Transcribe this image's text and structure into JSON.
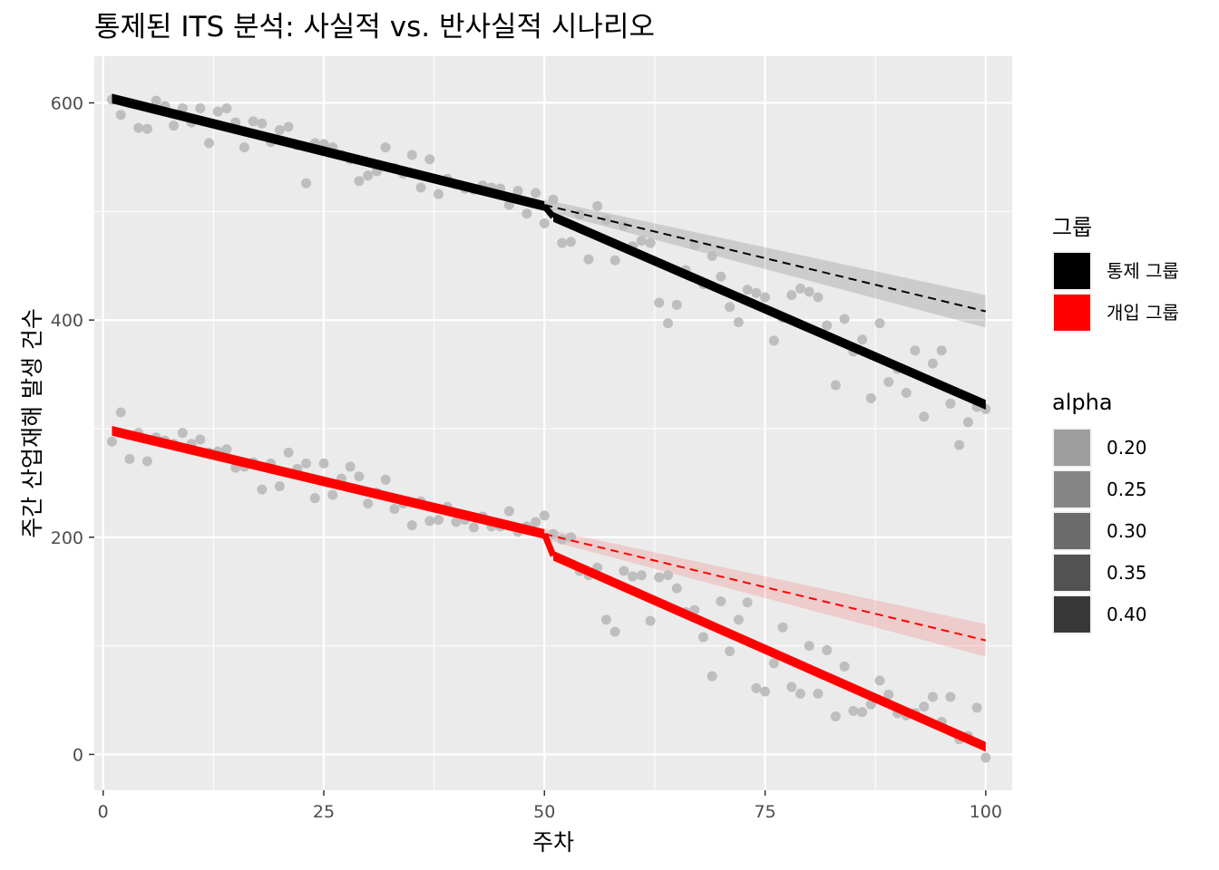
{
  "chart_data": {
    "type": "scatter",
    "title": "통제된 ITS 분석: 사실적 vs. 반사실적 시나리오",
    "xlabel": "주차",
    "ylabel": "주간 산업재해 발생 건수",
    "xlim": [
      -1,
      103
    ],
    "ylim": [
      -33,
      643
    ],
    "x_ticks": [
      0,
      25,
      50,
      75,
      100
    ],
    "x_tick_labels": [
      "0",
      "25",
      "50",
      "75",
      "100"
    ],
    "y_ticks": [
      0,
      200,
      400,
      600
    ],
    "y_tick_labels": [
      "0",
      "200",
      "400",
      "600"
    ],
    "grid": true,
    "background": "#ebebeb",
    "interruption_week": 50,
    "point_color": "#bebebe",
    "series": [
      {
        "name": "통제 그룹",
        "color": "#000000",
        "fitted_pre": {
          "x": [
            1,
            50
          ],
          "y": [
            604,
            505
          ]
        },
        "fitted_post": {
          "x": [
            51,
            100
          ],
          "y": [
            495,
            322
          ]
        },
        "counterfactual": {
          "x": [
            50,
            100
          ],
          "y": [
            506,
            408
          ],
          "band_low": [
            501,
            393
          ],
          "band_high": [
            511,
            423
          ]
        },
        "points": [
          {
            "x": 1,
            "y": 603
          },
          {
            "x": 2,
            "y": 589
          },
          {
            "x": 3,
            "y": 600
          },
          {
            "x": 4,
            "y": 577
          },
          {
            "x": 5,
            "y": 576
          },
          {
            "x": 6,
            "y": 602
          },
          {
            "x": 7,
            "y": 597
          },
          {
            "x": 8,
            "y": 579
          },
          {
            "x": 9,
            "y": 595
          },
          {
            "x": 10,
            "y": 582
          },
          {
            "x": 11,
            "y": 595
          },
          {
            "x": 12,
            "y": 563
          },
          {
            "x": 13,
            "y": 592
          },
          {
            "x": 14,
            "y": 595
          },
          {
            "x": 15,
            "y": 582
          },
          {
            "x": 16,
            "y": 559
          },
          {
            "x": 17,
            "y": 583
          },
          {
            "x": 18,
            "y": 581
          },
          {
            "x": 19,
            "y": 564
          },
          {
            "x": 20,
            "y": 575
          },
          {
            "x": 21,
            "y": 578
          },
          {
            "x": 22,
            "y": 561
          },
          {
            "x": 23,
            "y": 526
          },
          {
            "x": 24,
            "y": 563
          },
          {
            "x": 25,
            "y": 562
          },
          {
            "x": 26,
            "y": 559
          },
          {
            "x": 27,
            "y": 552
          },
          {
            "x": 28,
            "y": 548
          },
          {
            "x": 29,
            "y": 528
          },
          {
            "x": 30,
            "y": 533
          },
          {
            "x": 31,
            "y": 537
          },
          {
            "x": 32,
            "y": 559
          },
          {
            "x": 33,
            "y": 540
          },
          {
            "x": 34,
            "y": 535
          },
          {
            "x": 35,
            "y": 552
          },
          {
            "x": 36,
            "y": 522
          },
          {
            "x": 37,
            "y": 548
          },
          {
            "x": 38,
            "y": 516
          },
          {
            "x": 39,
            "y": 530
          },
          {
            "x": 40,
            "y": 525
          },
          {
            "x": 41,
            "y": 521
          },
          {
            "x": 42,
            "y": 520
          },
          {
            "x": 43,
            "y": 524
          },
          {
            "x": 44,
            "y": 522
          },
          {
            "x": 45,
            "y": 521
          },
          {
            "x": 46,
            "y": 506
          },
          {
            "x": 47,
            "y": 519
          },
          {
            "x": 48,
            "y": 498
          },
          {
            "x": 49,
            "y": 517
          },
          {
            "x": 50,
            "y": 489
          },
          {
            "x": 51,
            "y": 511
          },
          {
            "x": 52,
            "y": 471
          },
          {
            "x": 53,
            "y": 472
          },
          {
            "x": 54,
            "y": 497
          },
          {
            "x": 55,
            "y": 456
          },
          {
            "x": 56,
            "y": 505
          },
          {
            "x": 57,
            "y": 492
          },
          {
            "x": 58,
            "y": 455
          },
          {
            "x": 59,
            "y": 487
          },
          {
            "x": 60,
            "y": 468
          },
          {
            "x": 61,
            "y": 473
          },
          {
            "x": 62,
            "y": 471
          },
          {
            "x": 63,
            "y": 416
          },
          {
            "x": 64,
            "y": 397
          },
          {
            "x": 65,
            "y": 414
          },
          {
            "x": 66,
            "y": 446
          },
          {
            "x": 67,
            "y": 469
          },
          {
            "x": 68,
            "y": 433
          },
          {
            "x": 69,
            "y": 459
          },
          {
            "x": 70,
            "y": 440
          },
          {
            "x": 71,
            "y": 412
          },
          {
            "x": 72,
            "y": 398
          },
          {
            "x": 73,
            "y": 428
          },
          {
            "x": 74,
            "y": 425
          },
          {
            "x": 75,
            "y": 421
          },
          {
            "x": 76,
            "y": 381
          },
          {
            "x": 77,
            "y": 402
          },
          {
            "x": 78,
            "y": 423
          },
          {
            "x": 79,
            "y": 429
          },
          {
            "x": 80,
            "y": 426
          },
          {
            "x": 81,
            "y": 421
          },
          {
            "x": 82,
            "y": 395
          },
          {
            "x": 83,
            "y": 340
          },
          {
            "x": 84,
            "y": 401
          },
          {
            "x": 85,
            "y": 371
          },
          {
            "x": 86,
            "y": 382
          },
          {
            "x": 87,
            "y": 328
          },
          {
            "x": 88,
            "y": 397
          },
          {
            "x": 89,
            "y": 343
          },
          {
            "x": 90,
            "y": 355
          },
          {
            "x": 91,
            "y": 333
          },
          {
            "x": 92,
            "y": 372
          },
          {
            "x": 93,
            "y": 311
          },
          {
            "x": 94,
            "y": 360
          },
          {
            "x": 95,
            "y": 372
          },
          {
            "x": 96,
            "y": 323
          },
          {
            "x": 97,
            "y": 285
          },
          {
            "x": 98,
            "y": 306
          },
          {
            "x": 99,
            "y": 320
          },
          {
            "x": 100,
            "y": 318
          }
        ]
      },
      {
        "name": "개입 그룹",
        "color": "#ff0000",
        "fitted_pre": {
          "x": [
            1,
            50
          ],
          "y": [
            298,
            203
          ]
        },
        "fitted_post": {
          "x": [
            51,
            100
          ],
          "y": [
            183,
            7
          ]
        },
        "counterfactual": {
          "x": [
            50,
            100
          ],
          "y": [
            203,
            105
          ],
          "band_low": [
            198,
            90
          ],
          "band_high": [
            208,
            120
          ]
        },
        "points": [
          {
            "x": 1,
            "y": 288
          },
          {
            "x": 2,
            "y": 315
          },
          {
            "x": 3,
            "y": 272
          },
          {
            "x": 4,
            "y": 296
          },
          {
            "x": 5,
            "y": 270
          },
          {
            "x": 6,
            "y": 292
          },
          {
            "x": 7,
            "y": 289
          },
          {
            "x": 8,
            "y": 286
          },
          {
            "x": 9,
            "y": 296
          },
          {
            "x": 10,
            "y": 286
          },
          {
            "x": 11,
            "y": 290
          },
          {
            "x": 12,
            "y": 278
          },
          {
            "x": 13,
            "y": 279
          },
          {
            "x": 14,
            "y": 281
          },
          {
            "x": 15,
            "y": 264
          },
          {
            "x": 16,
            "y": 265
          },
          {
            "x": 17,
            "y": 269
          },
          {
            "x": 18,
            "y": 244
          },
          {
            "x": 19,
            "y": 268
          },
          {
            "x": 20,
            "y": 247
          },
          {
            "x": 21,
            "y": 278
          },
          {
            "x": 22,
            "y": 263
          },
          {
            "x": 23,
            "y": 268
          },
          {
            "x": 24,
            "y": 236
          },
          {
            "x": 25,
            "y": 268
          },
          {
            "x": 26,
            "y": 239
          },
          {
            "x": 27,
            "y": 254
          },
          {
            "x": 28,
            "y": 265
          },
          {
            "x": 29,
            "y": 256
          },
          {
            "x": 30,
            "y": 231
          },
          {
            "x": 31,
            "y": 241
          },
          {
            "x": 32,
            "y": 253
          },
          {
            "x": 33,
            "y": 226
          },
          {
            "x": 34,
            "y": 231
          },
          {
            "x": 35,
            "y": 211
          },
          {
            "x": 36,
            "y": 233
          },
          {
            "x": 37,
            "y": 215
          },
          {
            "x": 38,
            "y": 216
          },
          {
            "x": 39,
            "y": 228
          },
          {
            "x": 40,
            "y": 214
          },
          {
            "x": 41,
            "y": 216
          },
          {
            "x": 42,
            "y": 209
          },
          {
            "x": 43,
            "y": 219
          },
          {
            "x": 44,
            "y": 210
          },
          {
            "x": 45,
            "y": 210
          },
          {
            "x": 46,
            "y": 224
          },
          {
            "x": 47,
            "y": 205
          },
          {
            "x": 48,
            "y": 210
          },
          {
            "x": 49,
            "y": 214
          },
          {
            "x": 50,
            "y": 220
          },
          {
            "x": 51,
            "y": 203
          },
          {
            "x": 52,
            "y": 198
          },
          {
            "x": 53,
            "y": 200
          },
          {
            "x": 54,
            "y": 169
          },
          {
            "x": 55,
            "y": 165
          },
          {
            "x": 56,
            "y": 172
          },
          {
            "x": 57,
            "y": 124
          },
          {
            "x": 58,
            "y": 113
          },
          {
            "x": 59,
            "y": 169
          },
          {
            "x": 60,
            "y": 164
          },
          {
            "x": 61,
            "y": 165
          },
          {
            "x": 62,
            "y": 123
          },
          {
            "x": 63,
            "y": 163
          },
          {
            "x": 64,
            "y": 165
          },
          {
            "x": 65,
            "y": 153
          },
          {
            "x": 66,
            "y": 131
          },
          {
            "x": 67,
            "y": 133
          },
          {
            "x": 68,
            "y": 108
          },
          {
            "x": 69,
            "y": 72
          },
          {
            "x": 70,
            "y": 141
          },
          {
            "x": 71,
            "y": 95
          },
          {
            "x": 72,
            "y": 124
          },
          {
            "x": 73,
            "y": 140
          },
          {
            "x": 74,
            "y": 61
          },
          {
            "x": 75,
            "y": 58
          },
          {
            "x": 76,
            "y": 84
          },
          {
            "x": 77,
            "y": 117
          },
          {
            "x": 78,
            "y": 62
          },
          {
            "x": 79,
            "y": 56
          },
          {
            "x": 80,
            "y": 100
          },
          {
            "x": 81,
            "y": 56
          },
          {
            "x": 82,
            "y": 96
          },
          {
            "x": 83,
            "y": 35
          },
          {
            "x": 84,
            "y": 81
          },
          {
            "x": 85,
            "y": 40
          },
          {
            "x": 86,
            "y": 39
          },
          {
            "x": 87,
            "y": 46
          },
          {
            "x": 88,
            "y": 68
          },
          {
            "x": 89,
            "y": 55
          },
          {
            "x": 90,
            "y": 38
          },
          {
            "x": 91,
            "y": 36
          },
          {
            "x": 92,
            "y": 38
          },
          {
            "x": 93,
            "y": 44
          },
          {
            "x": 94,
            "y": 53
          },
          {
            "x": 95,
            "y": 30
          },
          {
            "x": 96,
            "y": 53
          },
          {
            "x": 97,
            "y": 14
          },
          {
            "x": 98,
            "y": 17
          },
          {
            "x": 99,
            "y": 43
          },
          {
            "x": 100,
            "y": -3
          }
        ]
      }
    ]
  },
  "legend": {
    "group": {
      "title": "그룹",
      "items": [
        {
          "label": "통제 그룹",
          "color": "#000000"
        },
        {
          "label": "개입 그룹",
          "color": "#ff0000"
        }
      ]
    },
    "alpha": {
      "title": "alpha",
      "items": [
        {
          "label": "0.20",
          "value": 0.2
        },
        {
          "label": "0.25",
          "value": 0.25
        },
        {
          "label": "0.30",
          "value": 0.3
        },
        {
          "label": "0.35",
          "value": 0.35
        },
        {
          "label": "0.40",
          "value": 0.4
        }
      ]
    }
  }
}
